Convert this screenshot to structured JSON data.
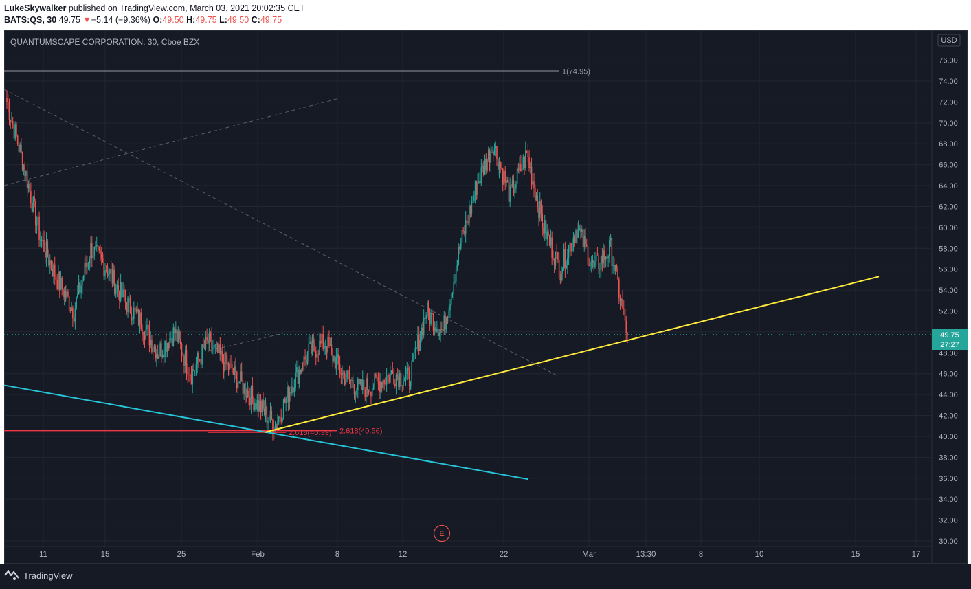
{
  "header": {
    "author": "LukeSkywalker",
    "published_text": "published on TradingView.com, March 03, 2021 20:02:35 CET",
    "symbol": "BATS:QS, 30",
    "last": "49.75",
    "change_arrow": "▼",
    "change": "−5.14 (−9.36%)",
    "o_label": "O:",
    "o_value": "49.50",
    "h_label": "H:",
    "h_value": "49.75",
    "l_label": "L:",
    "l_value": "49.50",
    "c_label": "C:",
    "c_value": "49.75"
  },
  "legend_title": "QUANTUMSCAPE CORPORATION, 30, Cboe BZX",
  "currency": "USD",
  "current_price_label": "49.75",
  "countdown_label": "27:27",
  "earnings_marker": "E",
  "footer": {
    "brand": "TradingView"
  },
  "colors": {
    "up": "#26a69a",
    "down": "#ef5350",
    "support_line": "#ffeb3b",
    "lower_channel": "#26c6da",
    "fib_line": "#f23645",
    "fib_top_line": "#9598a1"
  },
  "chart_data": {
    "type": "candlestick",
    "title": "QUANTUMSCAPE CORPORATION, 30, Cboe BZX",
    "y_unit": "USD",
    "ylim": [
      29.3,
      78.7
    ],
    "y_ticks": [
      "76.00",
      "74.00",
      "72.00",
      "70.00",
      "68.00",
      "66.00",
      "64.00",
      "62.00",
      "60.00",
      "58.00",
      "56.00",
      "54.00",
      "52.00",
      "50.00",
      "48.00",
      "46.00",
      "44.00",
      "42.00",
      "40.00",
      "38.00",
      "36.00",
      "34.00",
      "32.00",
      "30.00"
    ],
    "x_ticks": [
      "11",
      "15",
      "25",
      "Feb",
      "8",
      "12",
      "22",
      "Mar",
      "13:30",
      "8",
      "10",
      "15",
      "17"
    ],
    "grid": true,
    "last_price": 49.75,
    "approx_price_path": [
      [
        "Jan 07",
        72.0
      ],
      [
        "Jan 08",
        66.0
      ],
      [
        "Jan 11",
        59.0
      ],
      [
        "Jan 12",
        55.0
      ],
      [
        "Jan 13",
        52.0
      ],
      [
        "Jan 14",
        58.0
      ],
      [
        "Jan 15",
        56.0
      ],
      [
        "Jan 19",
        53.0
      ],
      [
        "Jan 20",
        51.0
      ],
      [
        "Jan 21",
        48.0
      ],
      [
        "Jan 22",
        50.0
      ],
      [
        "Jan 25",
        46.0
      ],
      [
        "Jan 26",
        49.0
      ],
      [
        "Jan 27",
        47.0
      ],
      [
        "Jan 28",
        45.0
      ],
      [
        "Jan 29",
        43.0
      ],
      [
        "Feb 01",
        41.0
      ],
      [
        "Feb 02",
        45.0
      ],
      [
        "Feb 03",
        48.0
      ],
      [
        "Feb 04",
        49.0
      ],
      [
        "Feb 05",
        46.0
      ],
      [
        "Feb 08",
        44.5
      ],
      [
        "Feb 09",
        45.0
      ],
      [
        "Feb 10",
        46.0
      ],
      [
        "Feb 11",
        45.5
      ],
      [
        "Feb 12",
        52.0
      ],
      [
        "Feb 16",
        50.0
      ],
      [
        "Feb 17",
        58.0
      ],
      [
        "Feb 18",
        64.0
      ],
      [
        "Feb 19",
        68.0
      ],
      [
        "Feb 22",
        63.0
      ],
      [
        "Feb 23",
        67.0
      ],
      [
        "Feb 24",
        60.0
      ],
      [
        "Feb 25",
        56.0
      ],
      [
        "Feb 26",
        60.0
      ],
      [
        "Mar 01",
        56.0
      ],
      [
        "Mar 02",
        58.0
      ],
      [
        "Mar 03",
        49.75
      ]
    ],
    "drawings": {
      "fib_level_1": {
        "label": "1(74.95)",
        "price": 74.95
      },
      "fib_level_2618_a": {
        "label": "2.618(40.39)",
        "price": 40.39
      },
      "fib_level_2618_b": {
        "label": "2.618(40.56)",
        "price": 40.56
      },
      "support_trendline": {
        "from_price": 40.4,
        "to_price": 55.3
      },
      "lower_channel_line": {
        "from_price": 44.9,
        "to_price": 35.9
      }
    }
  }
}
